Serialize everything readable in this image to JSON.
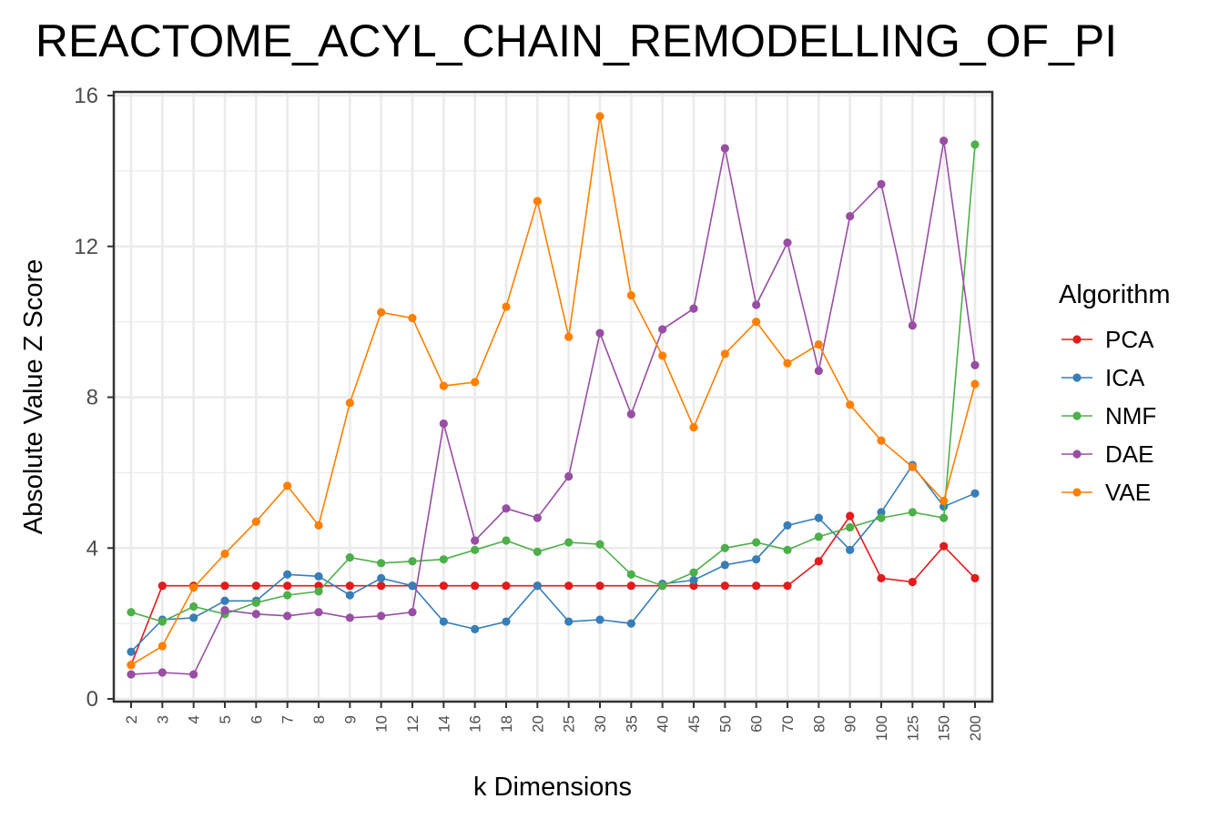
{
  "chart_data": {
    "type": "line",
    "title": "REACTOME_ACYL_CHAIN_REMODELLING_OF_PI",
    "xlabel": "k Dimensions",
    "ylabel": "Absolute Value Z Score",
    "categories": [
      "2",
      "3",
      "4",
      "5",
      "6",
      "7",
      "8",
      "9",
      "10",
      "12",
      "14",
      "16",
      "18",
      "20",
      "25",
      "30",
      "35",
      "40",
      "45",
      "50",
      "60",
      "70",
      "80",
      "90",
      "100",
      "125",
      "150",
      "200"
    ],
    "ylim": [
      0,
      16
    ],
    "yticks": [
      0,
      4,
      8,
      12,
      16
    ],
    "grid": true,
    "legend": {
      "title": "Algorithm",
      "position": "right"
    },
    "series": [
      {
        "name": "PCA",
        "color": "#E41A1C",
        "values": [
          0.9,
          3.0,
          3.0,
          3.0,
          3.0,
          3.0,
          3.0,
          3.0,
          3.0,
          3.0,
          3.0,
          3.0,
          3.0,
          3.0,
          3.0,
          3.0,
          3.0,
          3.0,
          3.0,
          3.0,
          3.0,
          3.0,
          3.65,
          4.85,
          3.2,
          3.1,
          4.05,
          3.2
        ]
      },
      {
        "name": "ICA",
        "color": "#377EB8",
        "values": [
          1.25,
          2.1,
          2.15,
          2.6,
          2.6,
          3.3,
          3.25,
          2.75,
          3.2,
          3.0,
          2.05,
          1.85,
          2.05,
          3.0,
          2.05,
          2.1,
          2.0,
          3.05,
          3.15,
          3.55,
          3.7,
          4.6,
          4.8,
          3.95,
          4.95,
          6.2,
          5.1,
          5.45
        ]
      },
      {
        "name": "NMF",
        "color": "#4DAF4A",
        "values": [
          2.3,
          2.05,
          2.45,
          2.25,
          2.55,
          2.75,
          2.85,
          3.75,
          3.6,
          3.65,
          3.7,
          3.95,
          4.2,
          3.9,
          4.15,
          4.1,
          3.3,
          3.0,
          3.35,
          4.0,
          4.15,
          3.95,
          4.3,
          4.55,
          4.8,
          4.95,
          4.8,
          14.7
        ]
      },
      {
        "name": "DAE",
        "color": "#984EA3",
        "values": [
          0.65,
          0.7,
          0.65,
          2.35,
          2.25,
          2.2,
          2.3,
          2.15,
          2.2,
          2.3,
          7.3,
          4.2,
          5.05,
          4.8,
          5.9,
          9.7,
          7.55,
          9.8,
          10.35,
          14.6,
          10.45,
          12.1,
          8.7,
          12.8,
          13.65,
          9.9,
          14.8,
          8.85
        ]
      },
      {
        "name": "VAE",
        "color": "#FF7F00",
        "values": [
          0.9,
          1.4,
          2.95,
          3.85,
          4.7,
          5.65,
          4.6,
          7.85,
          10.25,
          10.1,
          8.3,
          8.4,
          10.4,
          13.2,
          9.6,
          15.45,
          10.7,
          9.1,
          7.2,
          9.15,
          10.0,
          8.9,
          9.4,
          7.8,
          6.85,
          6.15,
          5.25,
          8.35
        ]
      }
    ]
  }
}
